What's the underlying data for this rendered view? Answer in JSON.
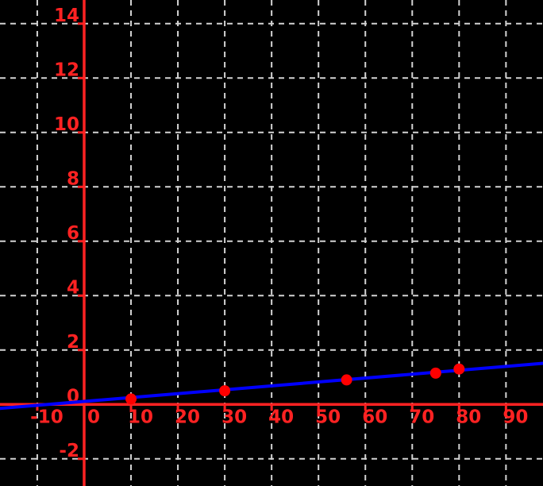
{
  "figure": {
    "background": "#000000"
  },
  "chart_data": {
    "type": "scatter",
    "title": "",
    "xlabel": "",
    "ylabel": "",
    "grid": true,
    "legend": null,
    "x_ticks": [
      -10,
      0,
      10,
      20,
      30,
      40,
      50,
      60,
      70,
      80,
      90
    ],
    "y_ticks": [
      -2,
      0,
      2,
      4,
      6,
      8,
      10,
      12,
      14
    ],
    "xlim": [
      -17.95,
      97.9
    ],
    "ylim": [
      -3.0,
      14.87
    ],
    "points": [
      {
        "x": 10,
        "y": 0.2
      },
      {
        "x": 30,
        "y": 0.5
      },
      {
        "x": 56,
        "y": 0.9
      },
      {
        "x": 75,
        "y": 1.15
      },
      {
        "x": 80,
        "y": 1.3
      }
    ],
    "fit_line": {
      "slope": 0.0143,
      "intercept": 0.11
    },
    "colors": {
      "background": "#000000",
      "axis": "#ff2222",
      "tick_label": "#ff2222",
      "grid": "#d3d3d3",
      "line": "#0000ff",
      "point": "#ff0000"
    }
  }
}
